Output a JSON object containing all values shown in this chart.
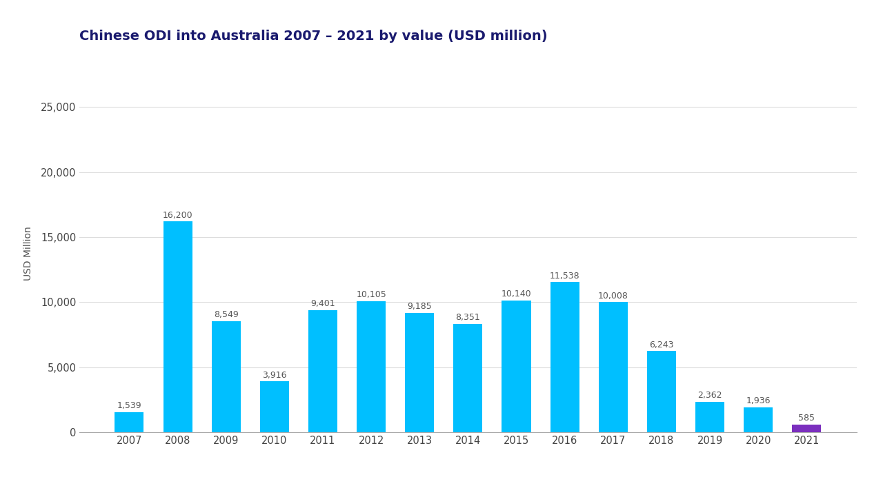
{
  "title": "Chinese ODI into Australia 2007 – 2021 by value (USD million)",
  "ylabel": "USD Million",
  "years": [
    "2007",
    "2008",
    "2009",
    "2010",
    "2011",
    "2012",
    "2013",
    "2014",
    "2015",
    "2016",
    "2017",
    "2018",
    "2019",
    "2020",
    "2021"
  ],
  "values": [
    1539,
    16200,
    8549,
    3916,
    9401,
    10105,
    9185,
    8351,
    10140,
    11538,
    10008,
    6243,
    2362,
    1936,
    585
  ],
  "bar_colors": [
    "#00BFFF",
    "#00BFFF",
    "#00BFFF",
    "#00BFFF",
    "#00BFFF",
    "#00BFFF",
    "#00BFFF",
    "#00BFFF",
    "#00BFFF",
    "#00BFFF",
    "#00BFFF",
    "#00BFFF",
    "#00BFFF",
    "#00BFFF",
    "#7B2FBE"
  ],
  "background_color": "#FFFFFF",
  "title_color": "#1a1a6e",
  "ylabel_color": "#555555",
  "ylim": [
    0,
    27500
  ],
  "yticks": [
    0,
    5000,
    10000,
    15000,
    20000,
    25000
  ],
  "ytick_labels": [
    "0",
    "5,000",
    "10,000",
    "15,000",
    "20,000",
    "25,000"
  ],
  "bar_label_color": "#555555",
  "bar_label_fontsize": 9.0,
  "title_fontsize": 14,
  "ylabel_fontsize": 10,
  "tick_fontsize": 10.5
}
